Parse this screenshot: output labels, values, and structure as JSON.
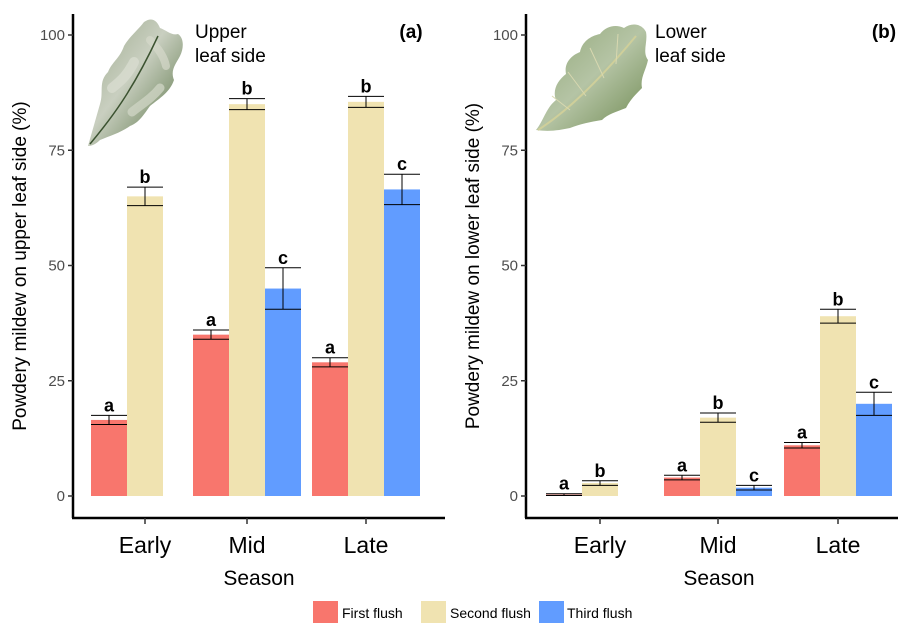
{
  "chart_data": [
    {
      "type": "bar",
      "panel_label": "(a)",
      "annotation": [
        "Upper",
        "leaf side"
      ],
      "categories": [
        "Early",
        "Mid",
        "Late"
      ],
      "xlabel": "Season",
      "ylabel": "Powdery mildew on upper leaf side (%)",
      "ylim": [
        0,
        100
      ],
      "yticks": [
        0,
        25,
        50,
        75,
        100
      ],
      "series": [
        {
          "name": "First flush",
          "values": [
            16.5,
            35.0,
            29.0
          ],
          "err": [
            1.0,
            1.0,
            1.0
          ],
          "sig": [
            "a",
            "a",
            "a"
          ]
        },
        {
          "name": "Second flush",
          "values": [
            65.0,
            85.0,
            85.5
          ],
          "err": [
            2.0,
            1.2,
            1.2
          ],
          "sig": [
            "b",
            "b",
            "b"
          ]
        },
        {
          "name": "Third flush",
          "values": [
            null,
            45.0,
            66.5
          ],
          "err": [
            null,
            4.5,
            3.3
          ],
          "sig": [
            null,
            "c",
            "c"
          ]
        }
      ]
    },
    {
      "type": "bar",
      "panel_label": "(b)",
      "annotation": [
        "Lower",
        "leaf side"
      ],
      "categories": [
        "Early",
        "Mid",
        "Late"
      ],
      "xlabel": "Season",
      "ylabel": "Powdery mildew on lower leaf side (%)",
      "ylim": [
        0,
        100
      ],
      "yticks": [
        0,
        25,
        50,
        75,
        100
      ],
      "series": [
        {
          "name": "First flush",
          "values": [
            0.3,
            4.0,
            11.0
          ],
          "err": [
            0.2,
            0.5,
            0.6
          ],
          "sig": [
            "a",
            "a",
            "a"
          ]
        },
        {
          "name": "Second flush",
          "values": [
            2.8,
            17.0,
            39.0
          ],
          "err": [
            0.5,
            1.0,
            1.5
          ],
          "sig": [
            "b",
            "b",
            "b"
          ]
        },
        {
          "name": "Third flush",
          "values": [
            null,
            1.8,
            20.0
          ],
          "err": [
            null,
            0.5,
            2.5
          ],
          "sig": [
            null,
            "c",
            "c"
          ]
        }
      ]
    }
  ],
  "legend": {
    "position": "bottom",
    "items": [
      {
        "label": "First flush",
        "color": "#F8766D"
      },
      {
        "label": "Second flush",
        "color": "#F0E3B1"
      },
      {
        "label": "Third flush",
        "color": "#619CFF"
      }
    ]
  },
  "colors": [
    "#F8766D",
    "#F0E3B1",
    "#619CFF"
  ]
}
